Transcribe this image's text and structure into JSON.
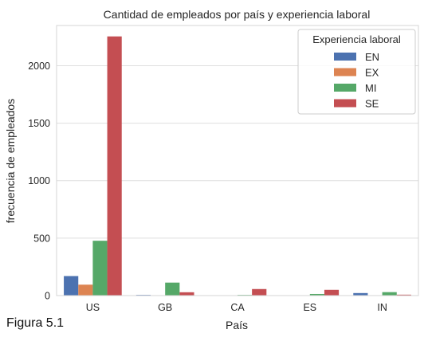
{
  "chart_data": {
    "type": "bar",
    "title": "Cantidad de empleados por país y experiencia laboral",
    "xlabel": "País",
    "ylabel": "frecuencia de empleados",
    "categories": [
      "US",
      "GB",
      "CA",
      "ES",
      "IN"
    ],
    "ylim": [
      0,
      2350
    ],
    "yticks": [
      0,
      500,
      1000,
      1500,
      2000
    ],
    "grid": true,
    "legend": {
      "title": "Experiencia laboral",
      "placement": "top-right"
    },
    "series": [
      {
        "name": "EN",
        "color": "#4c72b0",
        "values": [
          170,
          6,
          3,
          3,
          22
        ]
      },
      {
        "name": "EX",
        "color": "#dd8452",
        "values": [
          95,
          2,
          1,
          1,
          1
        ]
      },
      {
        "name": "MI",
        "color": "#55a868",
        "values": [
          477,
          113,
          6,
          14,
          30
        ]
      },
      {
        "name": "SE",
        "color": "#c44e52",
        "values": [
          2255,
          29,
          57,
          50,
          8
        ]
      }
    ]
  },
  "caption": "Figura 5.1"
}
